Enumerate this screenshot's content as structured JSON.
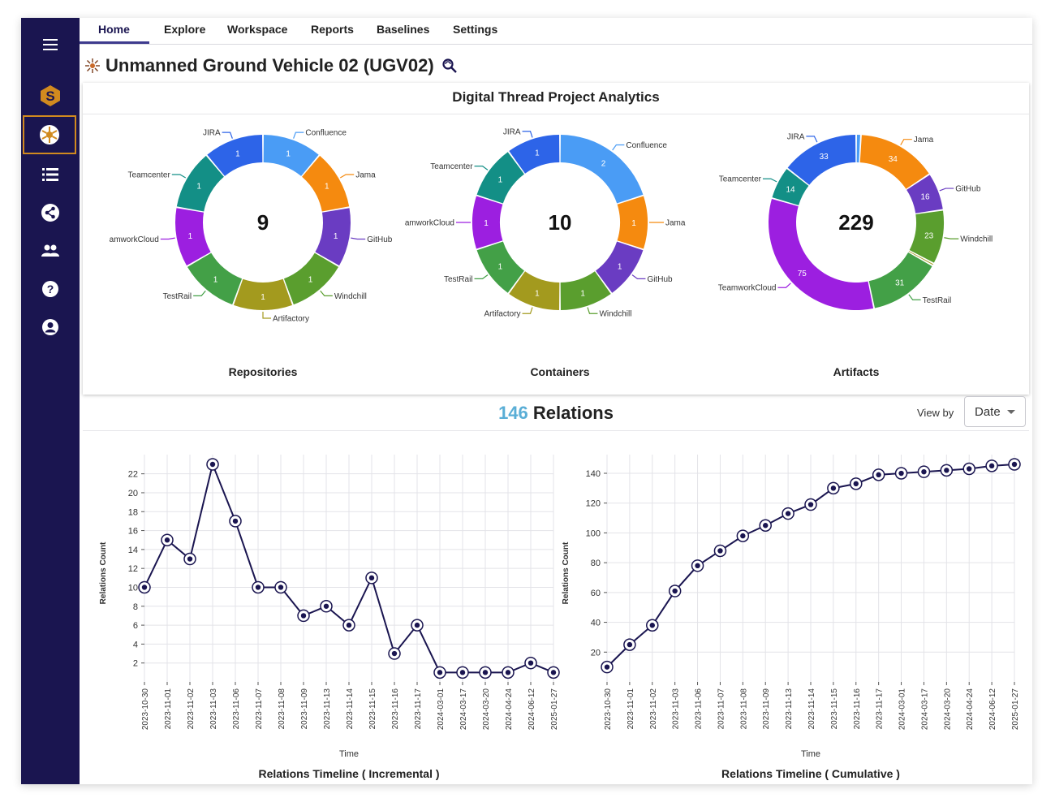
{
  "sidebar": {
    "items": [
      {
        "icon": "hamburger-menu-icon"
      },
      {
        "icon": "app-logo-icon"
      },
      {
        "icon": "project-hub-icon",
        "active": true
      },
      {
        "icon": "list-icon"
      },
      {
        "icon": "share-network-icon"
      },
      {
        "icon": "people-icon"
      },
      {
        "icon": "help-icon"
      },
      {
        "icon": "user-account-icon"
      }
    ],
    "accent": "#d18a1f",
    "background": "#1a1550"
  },
  "nav": {
    "tabs": [
      {
        "label": "Home",
        "active": true
      },
      {
        "label": "Explore"
      },
      {
        "label": "Workspace"
      },
      {
        "label": "Reports"
      },
      {
        "label": "Baselines"
      },
      {
        "label": "Settings"
      }
    ]
  },
  "project": {
    "title": "Unmanned Ground Vehicle 02 (UGV02)"
  },
  "analytics": {
    "title": "Digital Thread Project Analytics",
    "donuts": [
      {
        "label": "Repositories",
        "total": "9",
        "slices": [
          {
            "name": "Confluence",
            "value": 1,
            "color": "#4a9cf5"
          },
          {
            "name": "Jama",
            "value": 1,
            "color": "#f58a0f"
          },
          {
            "name": "GitHub",
            "value": 1,
            "color": "#6a3cc2"
          },
          {
            "name": "Windchill",
            "value": 1,
            "color": "#5a9e2e"
          },
          {
            "name": "Artifactory",
            "value": 1,
            "color": "#a39a1e"
          },
          {
            "name": "TestRail",
            "value": 1,
            "color": "#43a047"
          },
          {
            "name": "amworkCloud",
            "value": 1,
            "color": "#9c1fe0"
          },
          {
            "name": "Teamcenter",
            "value": 1,
            "color": "#138f86"
          },
          {
            "name": "JIRA",
            "value": 1,
            "color": "#2d64e8"
          }
        ]
      },
      {
        "label": "Containers",
        "total": "10",
        "slices": [
          {
            "name": "Confluence",
            "value": 2,
            "color": "#4a9cf5"
          },
          {
            "name": "Jama",
            "value": 1,
            "color": "#f58a0f"
          },
          {
            "name": "GitHub",
            "value": 1,
            "color": "#6a3cc2"
          },
          {
            "name": "Windchill",
            "value": 1,
            "color": "#5a9e2e"
          },
          {
            "name": "Artifactory",
            "value": 1,
            "color": "#a39a1e"
          },
          {
            "name": "TestRail",
            "value": 1,
            "color": "#43a047"
          },
          {
            "name": "amworkCloud",
            "value": 1,
            "color": "#9c1fe0"
          },
          {
            "name": "Teamcenter",
            "value": 1,
            "color": "#138f86"
          },
          {
            "name": "JIRA",
            "value": 1,
            "color": "#2d64e8"
          }
        ]
      },
      {
        "label": "Artifacts",
        "total": "229",
        "slices": [
          {
            "name": "",
            "value": 2,
            "color": "#4a9cf5",
            "hideValue": true
          },
          {
            "name": "Jama",
            "value": 34,
            "color": "#f58a0f"
          },
          {
            "name": "GitHub",
            "value": 16,
            "color": "#6a3cc2"
          },
          {
            "name": "Windchill",
            "value": 23,
            "color": "#5a9e2e"
          },
          {
            "name": "",
            "value": 1,
            "color": "#a39a1e",
            "hideValue": true
          },
          {
            "name": "TestRail",
            "value": 31,
            "color": "#43a047"
          },
          {
            "name": "TeamworkCloud",
            "value": 75,
            "color": "#9c1fe0"
          },
          {
            "name": "Teamcenter",
            "value": 14,
            "color": "#138f86"
          },
          {
            "name": "JIRA",
            "value": 33,
            "color": "#2d64e8"
          }
        ]
      }
    ]
  },
  "relations": {
    "count": "146",
    "label": "Relations",
    "view_by_label": "View by",
    "view_by_value": "Date"
  },
  "chart_data": [
    {
      "type": "line",
      "title": "Relations Timeline ( Incremental )",
      "xlabel": "Time",
      "ylabel": "Relations Count",
      "categories": [
        "2023-10-30",
        "2023-11-01",
        "2023-11-02",
        "2023-11-03",
        "2023-11-06",
        "2023-11-07",
        "2023-11-08",
        "2023-11-09",
        "2023-11-13",
        "2023-11-14",
        "2023-11-15",
        "2023-11-16",
        "2023-11-17",
        "2024-03-01",
        "2024-03-17",
        "2024-03-20",
        "2024-04-24",
        "2024-06-12",
        "2025-01-27"
      ],
      "values": [
        10,
        15,
        13,
        23,
        17,
        10,
        10,
        7,
        8,
        6,
        11,
        3,
        6,
        1,
        1,
        1,
        1,
        2,
        1
      ],
      "ylim": [
        0,
        23
      ],
      "yticks": [
        2,
        4,
        6,
        8,
        10,
        12,
        14,
        16,
        18,
        20,
        22
      ],
      "grid": true,
      "line_color": "#1a1550"
    },
    {
      "type": "line",
      "title": "Relations Timeline ( Cumulative )",
      "xlabel": "Time",
      "ylabel": "Relations Count",
      "categories": [
        "2023-10-30",
        "2023-11-01",
        "2023-11-02",
        "2023-11-03",
        "2023-11-06",
        "2023-11-07",
        "2023-11-08",
        "2023-11-09",
        "2023-11-13",
        "2023-11-14",
        "2023-11-15",
        "2023-11-16",
        "2023-11-17",
        "2024-03-01",
        "2024-03-17",
        "2024-03-20",
        "2024-04-24",
        "2024-06-12",
        "2025-01-27"
      ],
      "values": [
        10,
        25,
        38,
        61,
        78,
        88,
        98,
        105,
        113,
        119,
        130,
        133,
        139,
        140,
        141,
        142,
        143,
        145,
        146
      ],
      "ylim": [
        0,
        146
      ],
      "yticks": [
        20,
        40,
        60,
        80,
        100,
        120,
        140
      ],
      "grid": true,
      "line_color": "#1a1550"
    }
  ]
}
